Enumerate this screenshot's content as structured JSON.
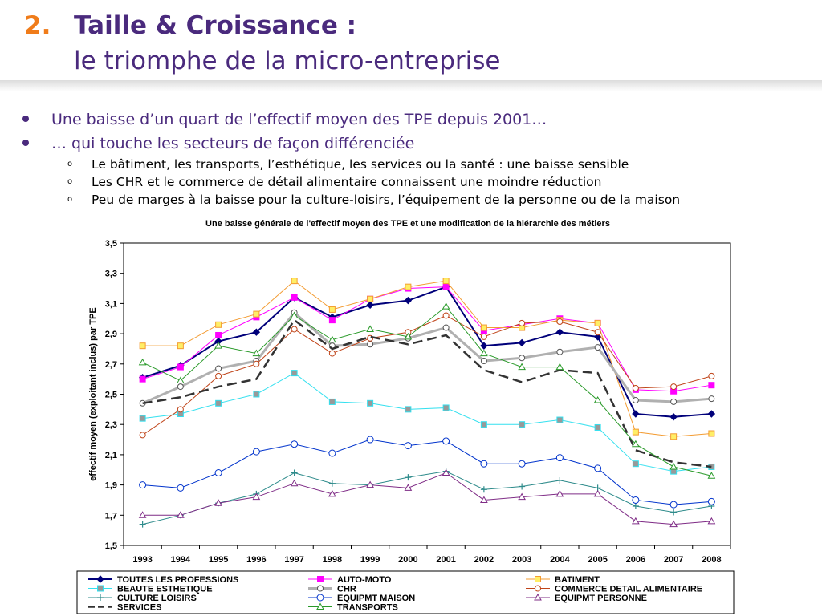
{
  "header": {
    "number": "2.",
    "title": "Taille & Croissance :",
    "subtitle": "le triomphe de la micro-entreprise"
  },
  "bullets": [
    {
      "text": "Une baisse d’un quart de l’effectif moyen des TPE depuis 2001…"
    },
    {
      "text": "… qui touche les secteurs de façon différenciée"
    }
  ],
  "subbullets": [
    {
      "text": "Le bâtiment, les transports, l’esthétique, les services ou la santé : une baisse sensible"
    },
    {
      "text": "Les CHR et le commerce de détail alimentaire connaissent une moindre réduction"
    },
    {
      "text": "Peu de marges à la baisse pour la culture-loisirs, l’équipement de la personne ou de la maison"
    }
  ],
  "colors": {
    "title_accent": "#f07c1a",
    "title_main": "#4a2a7d"
  },
  "chart_data": {
    "type": "line",
    "title": "Une baisse générale de l'effectif moyen des TPE et une modification de la hiérarchie des métiers",
    "ylabel": "effectif moyen (exploitant inclus) par TPE",
    "xlabel": "",
    "ylim": [
      1.5,
      3.5
    ],
    "yticks": [
      "1,5",
      "1,7",
      "1,9",
      "2,1",
      "2,3",
      "2,5",
      "2,7",
      "2,9",
      "3,1",
      "3,3",
      "3,5"
    ],
    "grid": false,
    "legend_position": "bottom",
    "categories": [
      "1993",
      "1994",
      "1995",
      "1996",
      "1997",
      "1998",
      "1999",
      "2000",
      "2001",
      "2002",
      "2003",
      "2004",
      "2005",
      "2006",
      "2007",
      "2008"
    ],
    "series": [
      {
        "name": "TOUTES LES PROFESSIONS",
        "color": "#00007a",
        "marker": "diamond",
        "width": 2,
        "values": [
          2.61,
          2.69,
          2.85,
          2.91,
          3.14,
          3.01,
          3.09,
          3.12,
          3.21,
          2.82,
          2.84,
          2.91,
          2.88,
          2.37,
          2.35,
          2.37
        ]
      },
      {
        "name": "AUTO-MOTO",
        "color": "#ff00ff",
        "marker": "square",
        "width": 1,
        "values": [
          2.6,
          2.68,
          2.89,
          3.01,
          3.14,
          2.99,
          3.13,
          3.2,
          3.21,
          2.92,
          2.96,
          3.0,
          2.97,
          2.53,
          2.52,
          2.56
        ]
      },
      {
        "name": "BATIMENT",
        "color": "#f39c33",
        "marker": "squarehollow",
        "width": 1,
        "values": [
          2.82,
          2.82,
          2.96,
          3.03,
          3.25,
          3.06,
          3.13,
          3.21,
          3.25,
          2.94,
          2.94,
          2.99,
          2.97,
          2.25,
          2.22,
          2.24
        ]
      },
      {
        "name": "BEAUTE ESTHETIQUE",
        "color": "#33e0ef",
        "marker": "squaregray",
        "width": 1,
        "values": [
          2.34,
          2.37,
          2.44,
          2.5,
          2.64,
          2.45,
          2.44,
          2.4,
          2.41,
          2.3,
          2.3,
          2.33,
          2.28,
          2.04,
          1.99,
          2.02
        ]
      },
      {
        "name": "CHR",
        "color": "#b0b0b0",
        "marker": "circlegray",
        "width": 3,
        "values": [
          2.44,
          2.55,
          2.67,
          2.72,
          3.04,
          2.82,
          2.83,
          2.87,
          2.94,
          2.72,
          2.74,
          2.78,
          2.81,
          2.46,
          2.45,
          2.47
        ]
      },
      {
        "name": "COMMERCE DETAIL ALIMENTAIRE",
        "color": "#c0451a",
        "marker": "circle",
        "width": 1,
        "values": [
          2.23,
          2.4,
          2.62,
          2.7,
          2.93,
          2.77,
          2.87,
          2.91,
          3.02,
          2.88,
          2.97,
          2.98,
          2.91,
          2.54,
          2.55,
          2.62
        ]
      },
      {
        "name": "CULTURE LOISIRS",
        "color": "#2e8b8b",
        "marker": "plus",
        "width": 1,
        "values": [
          1.64,
          1.7,
          1.78,
          1.84,
          1.98,
          1.91,
          1.9,
          1.95,
          1.99,
          1.87,
          1.89,
          1.93,
          1.88,
          1.76,
          1.72,
          1.76
        ]
      },
      {
        "name": "EQUIPMT MAISON",
        "color": "#0033cc",
        "marker": "circlebig",
        "width": 1,
        "values": [
          1.9,
          1.88,
          1.98,
          2.12,
          2.17,
          2.11,
          2.2,
          2.16,
          2.19,
          2.04,
          2.04,
          2.08,
          2.01,
          1.8,
          1.77,
          1.79
        ]
      },
      {
        "name": "EQUIPMT PERSONNE",
        "color": "#7f2c86",
        "marker": "triangle",
        "width": 1,
        "values": [
          1.7,
          1.7,
          1.78,
          1.82,
          1.91,
          1.84,
          1.9,
          1.88,
          1.98,
          1.8,
          1.82,
          1.84,
          1.84,
          1.66,
          1.64,
          1.66
        ]
      },
      {
        "name": "SERVICES",
        "color": "#333333",
        "marker": "none",
        "width": 2.5,
        "dash": "12,6",
        "values": [
          2.44,
          2.48,
          2.55,
          2.6,
          2.99,
          2.8,
          2.88,
          2.83,
          2.89,
          2.66,
          2.58,
          2.66,
          2.64,
          2.13,
          2.05,
          2.02
        ]
      },
      {
        "name": "TRANSPORTS",
        "color": "#2a9a2a",
        "marker": "trianglegreen",
        "width": 1,
        "values": [
          2.71,
          2.59,
          2.82,
          2.77,
          3.02,
          2.86,
          2.93,
          2.88,
          3.08,
          2.77,
          2.68,
          2.68,
          2.46,
          2.17,
          2.02,
          1.96
        ]
      }
    ]
  }
}
